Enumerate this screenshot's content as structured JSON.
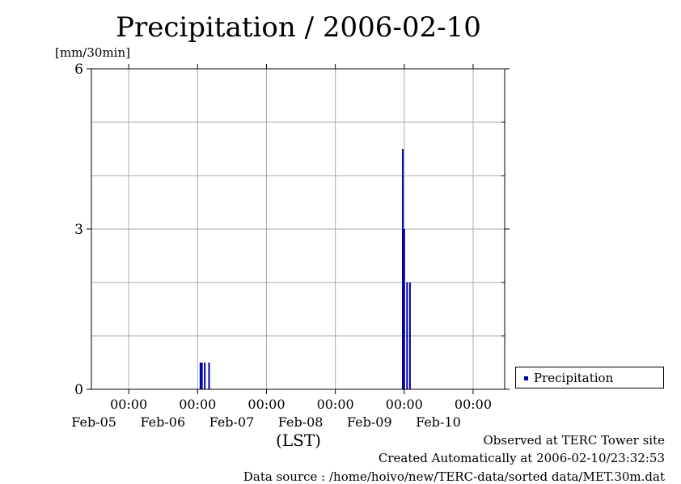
{
  "chart_data": {
    "type": "bar",
    "title": "Precipitation / 2006-02-10",
    "ylabel": "[mm/30min]",
    "xlabel": "(LST)",
    "ylim": [
      0,
      6
    ],
    "yticks": [
      0,
      3,
      6
    ],
    "xlim": [
      "2006-02-04T11:00",
      "2006-02-10T11:00"
    ],
    "xticks": [
      {
        "time": "2006-02-05T00:00",
        "label": "00:00",
        "date": "Feb-05"
      },
      {
        "time": "2006-02-06T00:00",
        "label": "00:00",
        "date": "Feb-06"
      },
      {
        "time": "2006-02-07T00:00",
        "label": "00:00",
        "date": "Feb-07"
      },
      {
        "time": "2006-02-08T00:00",
        "label": "00:00",
        "date": "Feb-08"
      },
      {
        "time": "2006-02-09T00:00",
        "label": "00:00",
        "date": "Feb-09"
      },
      {
        "time": "2006-02-10T00:00",
        "label": "00:00",
        "date": "Feb-10"
      }
    ],
    "grid": true,
    "legend_position": "right",
    "series": [
      {
        "name": "Precipitation",
        "color": "#0000aa",
        "points": [
          {
            "x": "2006-02-06T01:00",
            "y": 0.5
          },
          {
            "x": "2006-02-06T01:30",
            "y": 0.5
          },
          {
            "x": "2006-02-06T02:30",
            "y": 0.5
          },
          {
            "x": "2006-02-06T04:00",
            "y": 0.5
          },
          {
            "x": "2006-02-08T23:30",
            "y": 4.5
          },
          {
            "x": "2006-02-09T00:00",
            "y": 3.0
          },
          {
            "x": "2006-02-09T01:00",
            "y": 2.0
          },
          {
            "x": "2006-02-09T02:00",
            "y": 2.0
          }
        ]
      }
    ]
  },
  "footer": {
    "observed": "Observed at TERC Tower site",
    "created": "Created Automatically at 2006-02-10/23:32:53",
    "source": "Data source : /home/hoivo/new/TERC-data/sorted  data/MET.30m.dat"
  }
}
